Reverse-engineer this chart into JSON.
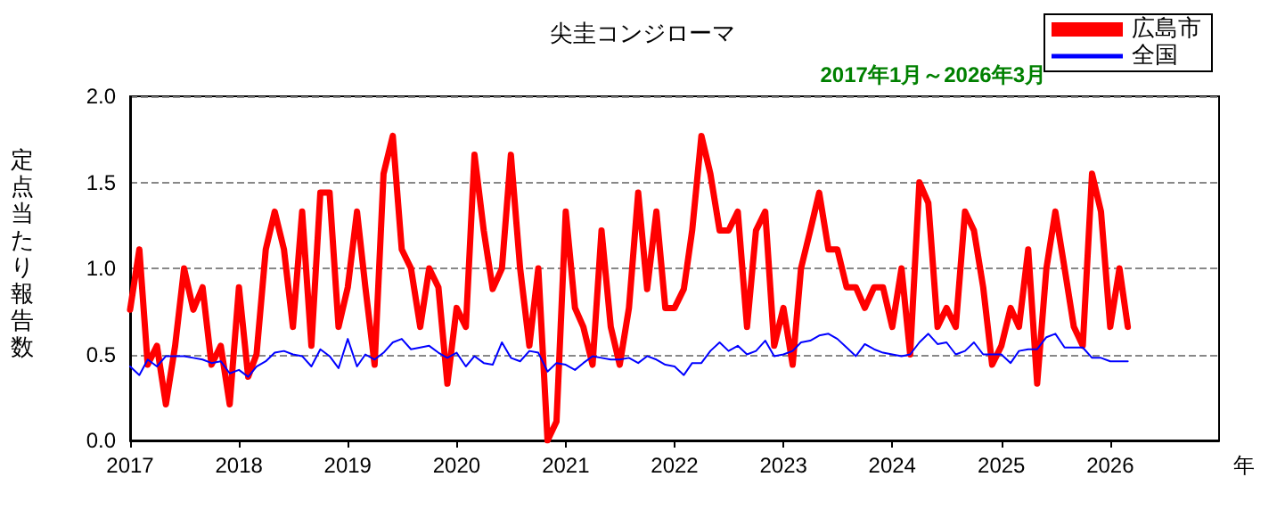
{
  "chart_data": {
    "type": "line",
    "title": "尖圭コンジローマ",
    "xlabel": "年",
    "ylabel": "定点当たり報告数",
    "annotations": [
      "2017年1月～2026年3月"
    ],
    "x": [
      "2017-01",
      "2017-02",
      "2017-03",
      "2017-04",
      "2017-05",
      "2017-06",
      "2017-07",
      "2017-08",
      "2017-09",
      "2017-10",
      "2017-11",
      "2017-12",
      "2018-01",
      "2018-02",
      "2018-03",
      "2018-04",
      "2018-05",
      "2018-06",
      "2018-07",
      "2018-08",
      "2018-09",
      "2018-10",
      "2018-11",
      "2018-12",
      "2019-01",
      "2019-02",
      "2019-03",
      "2019-04",
      "2019-05",
      "2019-06",
      "2019-07",
      "2019-08",
      "2019-09",
      "2019-10",
      "2019-11",
      "2019-12",
      "2020-01",
      "2020-02",
      "2020-03",
      "2020-04",
      "2020-05",
      "2020-06",
      "2020-07",
      "2020-08",
      "2020-09",
      "2020-10",
      "2020-11",
      "2020-12",
      "2021-01",
      "2021-02",
      "2021-03",
      "2021-04",
      "2021-05",
      "2021-06",
      "2021-07",
      "2021-08",
      "2021-09",
      "2021-10",
      "2021-11",
      "2021-12",
      "2022-01",
      "2022-02",
      "2022-03",
      "2022-04",
      "2022-05",
      "2022-06",
      "2022-07",
      "2022-08",
      "2022-09",
      "2022-10",
      "2022-11",
      "2022-12",
      "2023-01",
      "2023-02",
      "2023-03",
      "2023-04",
      "2023-05",
      "2023-06",
      "2023-07",
      "2023-08",
      "2023-09",
      "2023-10",
      "2023-11",
      "2023-12",
      "2024-01",
      "2024-02",
      "2024-03",
      "2024-04",
      "2024-05",
      "2024-06",
      "2024-07",
      "2024-08",
      "2024-09",
      "2024-10",
      "2024-11",
      "2024-12",
      "2025-01",
      "2025-02",
      "2025-03",
      "2025-04",
      "2025-05",
      "2025-06",
      "2025-07",
      "2025-08",
      "2025-09",
      "2025-10",
      "2025-11",
      "2025-12",
      "2026-01",
      "2026-02",
      "2026-03"
    ],
    "series": [
      {
        "name": "広島市",
        "color": "#ff0000",
        "values": [
          0.76,
          1.11,
          0.44,
          0.55,
          0.21,
          0.55,
          1.0,
          0.76,
          0.89,
          0.44,
          0.55,
          0.21,
          0.89,
          0.37,
          0.5,
          1.11,
          1.33,
          1.11,
          0.66,
          1.33,
          0.55,
          1.44,
          1.44,
          0.66,
          0.89,
          1.33,
          0.89,
          0.44,
          1.55,
          1.77,
          1.11,
          1.0,
          0.66,
          1.0,
          0.89,
          0.33,
          0.77,
          0.66,
          1.66,
          1.22,
          0.88,
          1.0,
          1.66,
          1.0,
          0.55,
          1.0,
          0.0,
          0.11,
          1.33,
          0.77,
          0.66,
          0.44,
          1.22,
          0.66,
          0.44,
          0.77,
          1.44,
          0.88,
          1.33,
          0.77,
          0.77,
          0.88,
          1.22,
          1.77,
          1.55,
          1.22,
          1.22,
          1.33,
          0.66,
          1.22,
          1.33,
          0.55,
          0.77,
          0.44,
          1.0,
          1.22,
          1.44,
          1.11,
          1.11,
          0.89,
          0.89,
          0.77,
          0.89,
          0.89,
          0.66,
          1.0,
          0.5,
          1.5,
          1.38,
          0.66,
          0.77,
          0.66,
          1.33,
          1.22,
          0.89,
          0.44,
          0.55,
          0.77,
          0.66,
          1.11,
          0.33,
          1.0,
          1.33,
          1.0,
          0.66,
          0.55,
          1.55,
          1.33,
          0.66,
          1.0,
          0.66
        ]
      },
      {
        "name": "全国",
        "color": "#0000ff",
        "values": [
          0.43,
          0.38,
          0.47,
          0.43,
          0.49,
          0.49,
          0.49,
          0.48,
          0.47,
          0.45,
          0.46,
          0.39,
          0.41,
          0.37,
          0.43,
          0.46,
          0.51,
          0.52,
          0.5,
          0.49,
          0.43,
          0.53,
          0.49,
          0.42,
          0.59,
          0.43,
          0.5,
          0.47,
          0.51,
          0.57,
          0.59,
          0.53,
          0.54,
          0.55,
          0.51,
          0.48,
          0.51,
          0.43,
          0.49,
          0.45,
          0.44,
          0.57,
          0.48,
          0.46,
          0.52,
          0.51,
          0.4,
          0.45,
          0.44,
          0.41,
          0.45,
          0.49,
          0.48,
          0.47,
          0.47,
          0.48,
          0.45,
          0.49,
          0.47,
          0.44,
          0.43,
          0.38,
          0.45,
          0.45,
          0.52,
          0.57,
          0.52,
          0.55,
          0.5,
          0.52,
          0.58,
          0.49,
          0.5,
          0.52,
          0.57,
          0.58,
          0.61,
          0.62,
          0.59,
          0.54,
          0.49,
          0.56,
          0.53,
          0.51,
          0.5,
          0.49,
          0.5,
          0.57,
          0.62,
          0.56,
          0.57,
          0.5,
          0.52,
          0.57,
          0.5,
          0.5,
          0.5,
          0.45,
          0.52,
          0.53,
          0.53,
          0.6,
          0.62,
          0.54,
          0.54,
          0.54,
          0.48,
          0.48,
          0.46,
          0.46,
          0.46
        ]
      }
    ],
    "xlim": [
      "2017-01",
      "2027-01"
    ],
    "xticks": [
      {
        "value": "2017-01",
        "label": "2017"
      },
      {
        "value": "2018-01",
        "label": "2018"
      },
      {
        "value": "2019-01",
        "label": "2019"
      },
      {
        "value": "2020-01",
        "label": "2020"
      },
      {
        "value": "2021-01",
        "label": "2021"
      },
      {
        "value": "2022-01",
        "label": "2022"
      },
      {
        "value": "2023-01",
        "label": "2023"
      },
      {
        "value": "2024-01",
        "label": "2024"
      },
      {
        "value": "2025-01",
        "label": "2025"
      },
      {
        "value": "2026-01",
        "label": "2026"
      }
    ],
    "ylim": [
      0,
      2
    ],
    "yticks": [
      {
        "value": 0,
        "label": "0.0"
      },
      {
        "value": 0.5,
        "label": "0.5"
      },
      {
        "value": 1,
        "label": "1.0"
      },
      {
        "value": 1.5,
        "label": "1.5"
      },
      {
        "value": 2,
        "label": "2.0"
      }
    ],
    "grid": "y",
    "legend": "top right",
    "marker": "none",
    "line_style": "solid"
  }
}
